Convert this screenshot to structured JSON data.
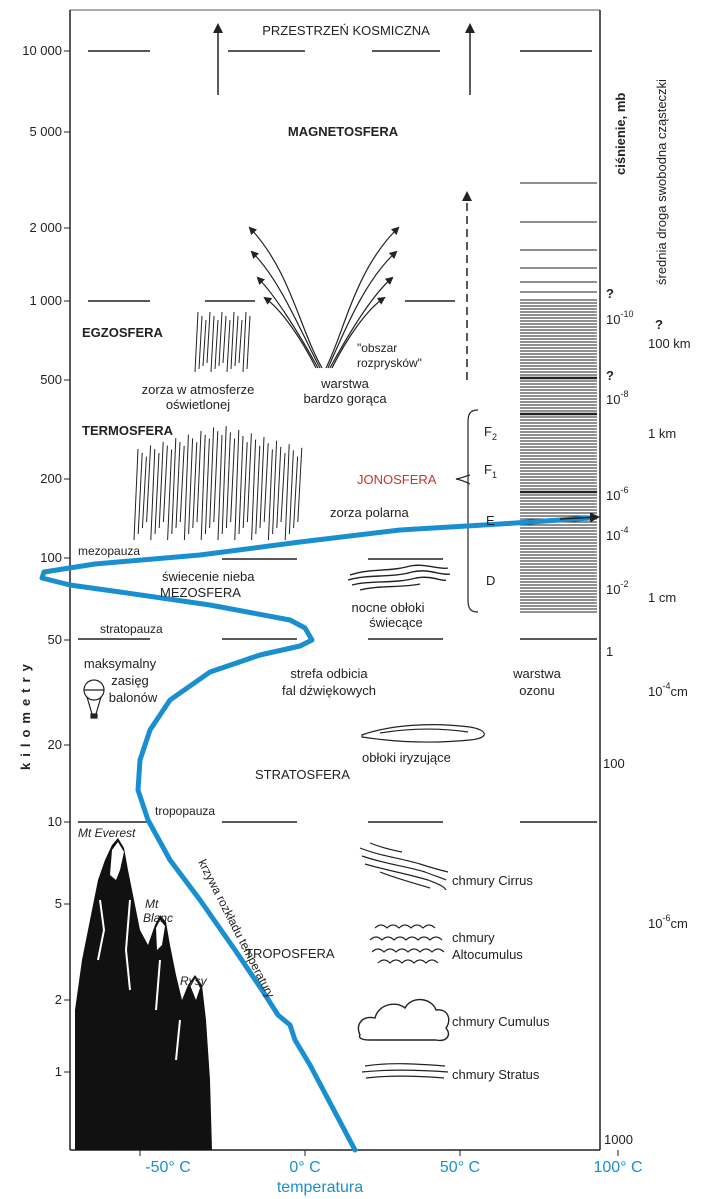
{
  "colors": {
    "ink": "#222222",
    "temperature_curve": "#1a8fd0",
    "temperature_axis": "#1a8fd0",
    "ionosphere_label": "#c0392b",
    "mountains": "#111111"
  },
  "axes": {
    "y_label": "kilometry",
    "y_ticks": [
      "10 000",
      "5 000",
      "2 000",
      "1 000",
      "500",
      "200",
      "100",
      "50",
      "20",
      "10",
      "5",
      "2",
      "1"
    ],
    "x_label": "temperatura",
    "x_ticks": [
      "-50° C",
      "0° C",
      "50° C",
      "100° C"
    ],
    "pressure_title": "ciśnienie, mb",
    "pressure_ticks": [
      "10",
      "-10",
      "10",
      "-8",
      "10",
      "-6",
      "10",
      "-4",
      "10",
      "-2",
      "1",
      "100",
      "1000"
    ],
    "pressure_question_marks": [
      "?",
      "?"
    ],
    "free_path_title": "średnia droga swobodna cząsteczki",
    "free_path_ticks": {
      "q": "?",
      "a": "100 km",
      "b": "1 km",
      "c": "1 cm",
      "d_base": "10",
      "d_exp": "-4",
      "d_unit": "cm",
      "e_base": "10",
      "e_exp": "-6",
      "e_unit": "cm"
    }
  },
  "layers": {
    "space": "PRZESTRZEŃ KOSMICZNA",
    "magnetosphere": "MAGNETOSFERA",
    "exosphere": "EGZOSFERA",
    "thermosphere": "TERMOSFERA",
    "ionosphere": "JONOSFERA",
    "mesopause": "mezopauza",
    "mesosphere": "MEZOSFERA",
    "stratopause": "stratopauza",
    "stratosphere": "STRATOSFERA",
    "tropopause": "tropopauza",
    "troposphere": "TROPOSFERA"
  },
  "ionosphere_layers": {
    "f2_base": "F",
    "f2_sub": "2",
    "f1_base": "F",
    "f1_sub": "1",
    "e": "E",
    "d": "D"
  },
  "annotations": {
    "splash_1": "\"obszar",
    "splash_2": "rozprysków\"",
    "hot_1": "warstwa",
    "hot_2": "bardzo gorąca",
    "aurora_sun_1": "zorza  w atmosferze",
    "aurora_sun_2": "oświetlonej",
    "aurora_polar": "zorza  polarna",
    "airglow": "świecenie  nieba",
    "noctilucent_1": "nocne  obłoki",
    "noctilucent_2": "świecące",
    "balloon_1": "maksymalny",
    "balloon_2": "zasięg",
    "balloon_3": "balonów",
    "sound_1": "strefa odbicia",
    "sound_2": "fal dźwiękowych",
    "ozone_1": "warstwa",
    "ozone_2": "ozonu",
    "nacreous": "obłoki  iryzujące",
    "cirrus": "chmury  Cirrus",
    "altocumulus_1": "chmury",
    "altocumulus_2": "Altocumulus",
    "cumulus": "chmury  Cumulus",
    "stratus": "chmury  Stratus",
    "curve_label": "krzywa rozkładu temperatury"
  },
  "mountains": {
    "everest": "Mt Everest",
    "blanc_1": "Mt",
    "blanc_2": "Blanc",
    "rysy": "Rysy"
  }
}
